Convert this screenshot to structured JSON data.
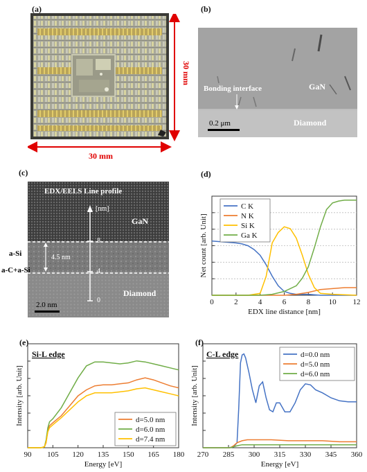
{
  "panels": {
    "a": {
      "letter": "(a)",
      "dim_right": "30 mm",
      "dim_bottom": "30 mm"
    },
    "b": {
      "letter": "(b)",
      "bonding_label": "Bonding interface",
      "gan_label": "GaN",
      "diamond_label": "Diamond",
      "scale_label": "0.2 μm"
    },
    "c": {
      "letter": "(c)",
      "title": "EDX/EELS Line profile",
      "unit": "[nm]",
      "gan_label": "GaN",
      "diamond_label": "Diamond",
      "asi_label": "a-Si",
      "acasi_label": "a-C+a-Si",
      "thickness_label": "4.5 nm",
      "scale_label": "2.0 nm",
      "ticks": [
        "8",
        "4",
        "0"
      ]
    },
    "d": {
      "letter": "(d)"
    },
    "e": {
      "letter": "(e)"
    },
    "f": {
      "letter": "(f)"
    }
  },
  "colors": {
    "blue": "#4472c4",
    "orange": "#ed7d31",
    "green": "#70ad47",
    "yellow": "#ffc000",
    "red": "#e00000"
  },
  "chart_data": [
    {
      "id": "d",
      "type": "line",
      "xlabel": "EDX line distance [nm]",
      "ylabel": "Net count [arb. Unit]",
      "xlim": [
        0,
        12
      ],
      "xticks": [
        0,
        2,
        4,
        6,
        8,
        10,
        12
      ],
      "ylim": [
        0,
        1
      ],
      "legend_position": "top-left",
      "series": [
        {
          "name": "C K",
          "color": "#4472c4",
          "x": [
            0,
            1,
            2,
            2.5,
            3,
            3.5,
            4,
            4.5,
            5,
            5.5,
            6,
            6.5,
            7,
            8,
            9,
            10,
            11,
            12
          ],
          "y": [
            0.57,
            0.56,
            0.55,
            0.54,
            0.52,
            0.48,
            0.42,
            0.32,
            0.2,
            0.1,
            0.04,
            0.02,
            0.01,
            0.01,
            0.0,
            0.0,
            0.0,
            0.0
          ]
        },
        {
          "name": "N K",
          "color": "#ed7d31",
          "x": [
            0,
            2,
            4,
            6,
            7,
            8,
            9,
            10,
            11,
            12
          ],
          "y": [
            0.0,
            0.0,
            0.0,
            0.0,
            0.01,
            0.03,
            0.06,
            0.07,
            0.08,
            0.08
          ]
        },
        {
          "name": "Si K",
          "color": "#ffc000",
          "x": [
            0,
            3,
            4,
            4.5,
            5,
            5.5,
            6,
            6.5,
            7,
            7.5,
            8,
            8.5,
            9,
            10,
            12
          ],
          "y": [
            0.0,
            0.0,
            0.02,
            0.2,
            0.55,
            0.66,
            0.72,
            0.7,
            0.6,
            0.42,
            0.22,
            0.08,
            0.02,
            0.01,
            0.0
          ]
        },
        {
          "name": "Ga K",
          "color": "#70ad47",
          "x": [
            0,
            4,
            5,
            6,
            7,
            7.5,
            8,
            8.5,
            9,
            9.5,
            10,
            10.5,
            11,
            11.5,
            12
          ],
          "y": [
            0.0,
            0.0,
            0.01,
            0.04,
            0.1,
            0.18,
            0.3,
            0.5,
            0.72,
            0.9,
            0.97,
            0.99,
            1.0,
            1.0,
            1.0
          ]
        }
      ]
    },
    {
      "id": "e",
      "type": "line",
      "annotation": "Si-L edge",
      "xlabel": "Energy [eV]",
      "ylabel": "Intensity [arb. Unit]",
      "xlim": [
        90,
        180
      ],
      "xticks": [
        90,
        105,
        120,
        135,
        150,
        165,
        180
      ],
      "ylim": [
        0,
        1
      ],
      "legend_position": "bottom-right",
      "series": [
        {
          "name": "d=5.0 nm",
          "color": "#ed7d31",
          "x": [
            90,
            98,
            100,
            101,
            102,
            103,
            105,
            110,
            115,
            120,
            125,
            130,
            135,
            140,
            145,
            150,
            155,
            160,
            165,
            170,
            175,
            180
          ],
          "y": [
            0.0,
            0.0,
            0.01,
            0.05,
            0.18,
            0.22,
            0.25,
            0.32,
            0.42,
            0.52,
            0.58,
            0.62,
            0.63,
            0.63,
            0.64,
            0.65,
            0.68,
            0.7,
            0.68,
            0.65,
            0.62,
            0.6
          ]
        },
        {
          "name": "d=6.0 nm",
          "color": "#70ad47",
          "x": [
            90,
            98,
            100,
            101,
            102,
            103,
            105,
            110,
            115,
            120,
            125,
            130,
            135,
            140,
            145,
            150,
            155,
            160,
            165,
            170,
            175,
            180
          ],
          "y": [
            0.0,
            0.0,
            0.01,
            0.08,
            0.2,
            0.26,
            0.29,
            0.4,
            0.55,
            0.7,
            0.82,
            0.86,
            0.86,
            0.85,
            0.84,
            0.85,
            0.87,
            0.86,
            0.84,
            0.82,
            0.8,
            0.78
          ]
        },
        {
          "name": "d=7.4 nm",
          "color": "#ffc000",
          "x": [
            90,
            98,
            100,
            101,
            102,
            103,
            105,
            110,
            115,
            120,
            125,
            130,
            135,
            140,
            145,
            150,
            155,
            160,
            165,
            170,
            175,
            180
          ],
          "y": [
            0.0,
            0.0,
            0.01,
            0.06,
            0.16,
            0.2,
            0.23,
            0.3,
            0.38,
            0.46,
            0.52,
            0.55,
            0.55,
            0.55,
            0.56,
            0.57,
            0.59,
            0.6,
            0.58,
            0.56,
            0.54,
            0.52
          ]
        }
      ]
    },
    {
      "id": "f",
      "type": "line",
      "annotation": "C-L edge",
      "xlabel": "Energy [eV]",
      "ylabel": "Intensity [arb. Unit]",
      "xlim": [
        270,
        360
      ],
      "xticks": [
        270,
        285,
        300,
        315,
        330,
        345,
        360
      ],
      "ylim": [
        0,
        1
      ],
      "legend_position": "top-right",
      "series": [
        {
          "name": "d=0.0 nm",
          "color": "#4472c4",
          "x": [
            270,
            285,
            288,
            290,
            291,
            292,
            293,
            294,
            295,
            297,
            299,
            301,
            303,
            305,
            307,
            309,
            311,
            313,
            315,
            318,
            321,
            324,
            327,
            330,
            333,
            336,
            340,
            345,
            350,
            355,
            360
          ],
          "y": [
            0.0,
            0.0,
            0.01,
            0.05,
            0.4,
            0.85,
            0.93,
            0.94,
            0.9,
            0.75,
            0.58,
            0.45,
            0.62,
            0.66,
            0.5,
            0.38,
            0.36,
            0.45,
            0.45,
            0.36,
            0.36,
            0.45,
            0.58,
            0.64,
            0.63,
            0.58,
            0.55,
            0.5,
            0.47,
            0.46,
            0.46
          ]
        },
        {
          "name": "d=5.0 nm",
          "color": "#ed7d31",
          "x": [
            270,
            286,
            288,
            290,
            293,
            296,
            300,
            310,
            320,
            330,
            340,
            350,
            360
          ],
          "y": [
            0.0,
            0.0,
            0.02,
            0.05,
            0.07,
            0.08,
            0.08,
            0.08,
            0.07,
            0.07,
            0.07,
            0.06,
            0.06
          ]
        },
        {
          "name": "d=6.0 nm",
          "color": "#70ad47",
          "x": [
            270,
            286,
            288,
            290,
            293,
            296,
            300,
            310,
            320,
            330,
            340,
            350,
            360
          ],
          "y": [
            0.0,
            0.0,
            0.01,
            0.02,
            0.03,
            0.03,
            0.03,
            0.03,
            0.03,
            0.03,
            0.03,
            0.03,
            0.03
          ]
        }
      ]
    }
  ]
}
